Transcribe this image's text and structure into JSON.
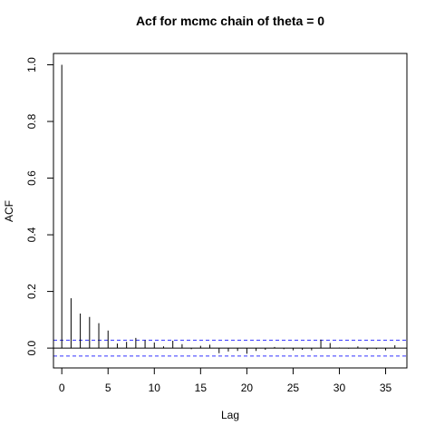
{
  "chart_data": {
    "type": "bar",
    "title": "Acf for mcmc chain of theta = 0",
    "xlabel": "Lag",
    "ylabel": "ACF",
    "xlim": [
      -0.9,
      37.3
    ],
    "ylim": [
      -0.07,
      1.04
    ],
    "x_ticks": [
      0,
      5,
      10,
      15,
      20,
      25,
      30,
      35
    ],
    "y_ticks": [
      0.0,
      0.2,
      0.4,
      0.6,
      0.8,
      1.0
    ],
    "x_tick_labels": [
      "0",
      "5",
      "10",
      "15",
      "20",
      "25",
      "30",
      "35"
    ],
    "y_tick_labels": [
      "0.0",
      "0.2",
      "0.4",
      "0.6",
      "0.8",
      "1.0"
    ],
    "confidence_bound": 0.028,
    "lags": [
      0,
      1,
      2,
      3,
      4,
      5,
      6,
      7,
      8,
      9,
      10,
      11,
      12,
      13,
      14,
      15,
      16,
      17,
      18,
      19,
      20,
      21,
      22,
      23,
      24,
      25,
      26,
      27,
      28,
      29,
      30,
      31,
      32,
      33,
      34,
      35,
      36
    ],
    "values": [
      1.0,
      0.176,
      0.122,
      0.11,
      0.088,
      0.062,
      0.016,
      0.022,
      0.036,
      0.028,
      0.02,
      0.006,
      0.026,
      0.014,
      -0.004,
      0.008,
      0.012,
      -0.018,
      -0.012,
      -0.01,
      -0.02,
      -0.01,
      -0.006,
      0.004,
      -0.004,
      -0.008,
      -0.006,
      -0.008,
      0.03,
      0.018,
      0.002,
      -0.002,
      0.006,
      -0.006,
      -0.004,
      -0.008,
      0.01
    ],
    "colors": {
      "bars": "#000000",
      "confidence": "#3333ff",
      "axis": "#000000"
    },
    "grid": false
  }
}
